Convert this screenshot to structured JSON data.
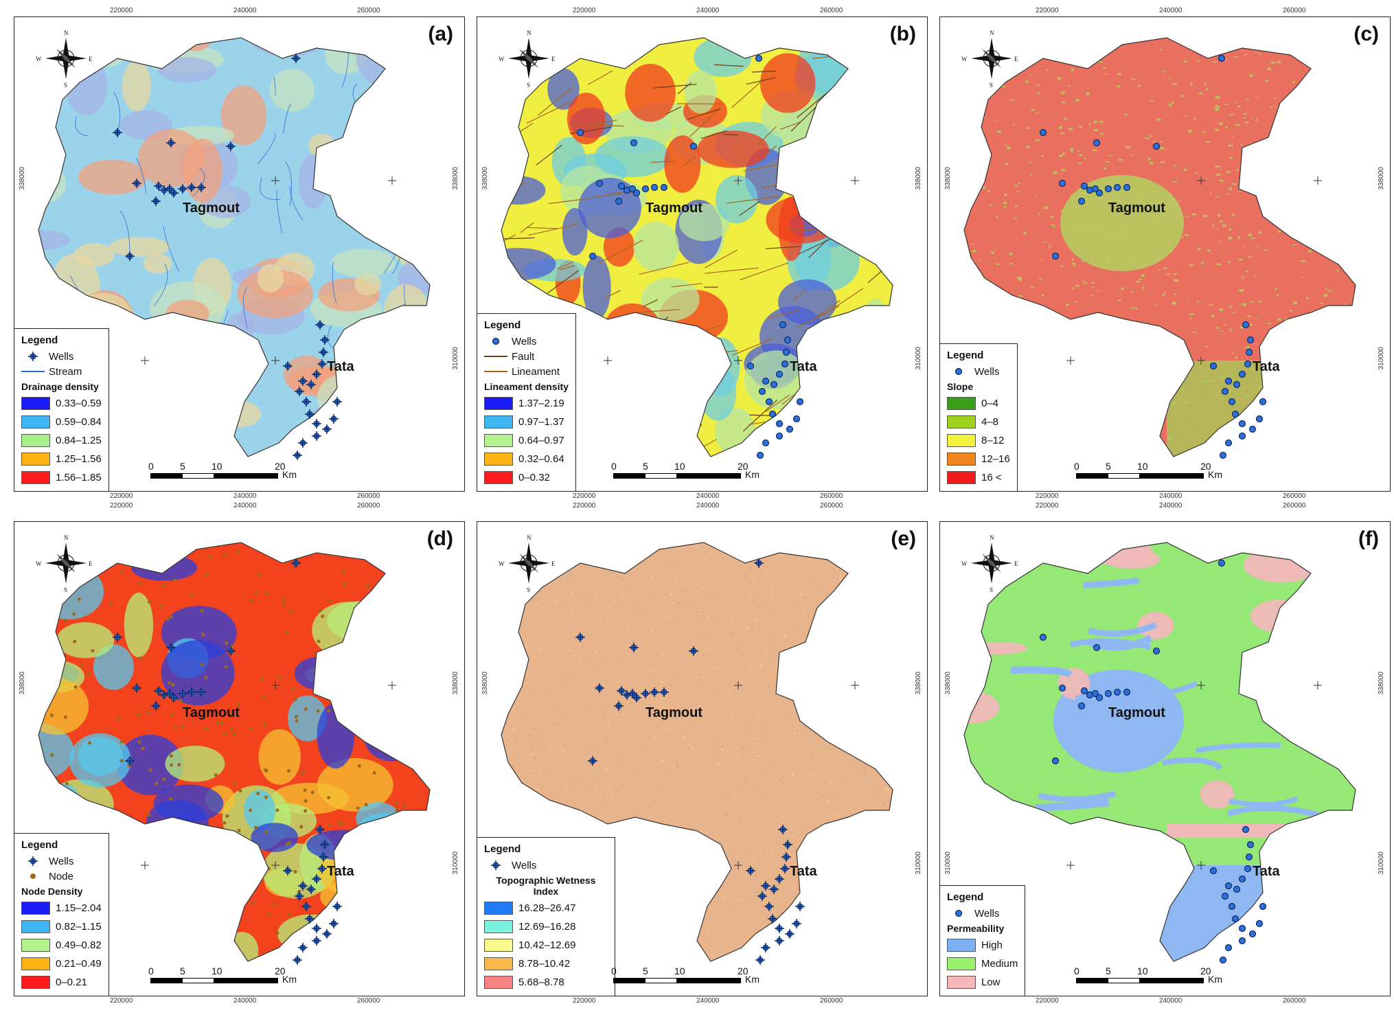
{
  "figure": {
    "top_ticks_row1": [
      "220000",
      "240000",
      "260000"
    ],
    "top_ticks_row2": [
      "220000",
      "240000",
      "260000"
    ],
    "bottom_ticks_row1": [
      "220000",
      "240000",
      "260000"
    ],
    "bottom_ticks_row2": [
      "220000",
      "240000",
      "260000"
    ],
    "y_ticks": [
      "338000",
      "310000"
    ],
    "place_names": {
      "north": "Tagmout",
      "south": "Tata"
    },
    "compass_letters": {
      "n": "N",
      "s": "S",
      "e": "E",
      "w": "W"
    },
    "scale": {
      "labels": [
        "0",
        "5",
        "10",
        "20"
      ],
      "unit": "Km"
    }
  },
  "panels": [
    {
      "id": "a",
      "label": "(a)",
      "base_colors": [
        "#9ad3ea",
        "#c5e3c0",
        "#e8d8a0",
        "#a6b4e6",
        "#f2a27e"
      ],
      "legend": {
        "title": "Legend",
        "symbols": [
          {
            "label": "Wells",
            "kind": "well-cross"
          },
          {
            "label": "Stream",
            "kind": "line",
            "color": "#2a6fd6"
          }
        ],
        "class_title": "Drainage density",
        "classes": [
          {
            "label": "0.33–0.59",
            "color": "#1b1bf5"
          },
          {
            "label": "0.59–0.84",
            "color": "#3fb6f2"
          },
          {
            "label": "0.84–1.25",
            "color": "#a8f08c"
          },
          {
            "label": "1.25–1.56",
            "color": "#fbb414"
          },
          {
            "label": "1.56–1.85",
            "color": "#fc1a1a"
          }
        ]
      }
    },
    {
      "id": "b",
      "label": "(b)",
      "base_colors": [
        "#f0ee40",
        "#b7e6a0",
        "#6fcde0",
        "#4c5fd8",
        "#f23b1e"
      ],
      "legend": {
        "title": "Legend",
        "symbols": [
          {
            "label": "Wells",
            "kind": "well-dot"
          },
          {
            "label": "Fault",
            "kind": "line",
            "color": "#6b3f1a"
          },
          {
            "label": "Lineament",
            "kind": "line",
            "color": "#a9651f"
          }
        ],
        "class_title": "Lineament density",
        "classes": [
          {
            "label": "1.37–2.19",
            "color": "#1b1bf5"
          },
          {
            "label": "0.97–1.37",
            "color": "#3fb6f2"
          },
          {
            "label": "0.64–0.97",
            "color": "#b3f28c"
          },
          {
            "label": "0.32–0.64",
            "color": "#fbb414"
          },
          {
            "label": "0–0.32",
            "color": "#fc1a1a"
          }
        ]
      }
    },
    {
      "id": "c",
      "label": "(c)",
      "base_colors": [
        "#e9705e",
        "#b8d060",
        "#e5805c"
      ],
      "legend": {
        "title": "Legend",
        "symbols": [
          {
            "label": "Wells",
            "kind": "well-dot"
          }
        ],
        "class_title": "Slope",
        "classes": [
          {
            "label": "0–4",
            "color": "#3a9e1a"
          },
          {
            "label": "4–8",
            "color": "#9ed21e"
          },
          {
            "label": "8–12",
            "color": "#f2f23a"
          },
          {
            "label": "12–16",
            "color": "#f2861e"
          },
          {
            "label": "16 <",
            "color": "#f21a1a"
          }
        ]
      }
    },
    {
      "id": "d",
      "label": "(d)",
      "base_colors": [
        "#f2431e",
        "#f6c232",
        "#b5ee7a",
        "#55c8ee",
        "#2b3fd8"
      ],
      "legend": {
        "title": "Legend",
        "symbols": [
          {
            "label": "Wells",
            "kind": "well-cross"
          },
          {
            "label": "Node",
            "kind": "node-dot"
          }
        ],
        "class_title": "Node Density",
        "classes": [
          {
            "label": "1.15–2.04",
            "color": "#1b1bf5"
          },
          {
            "label": "0.82–1.15",
            "color": "#3fb6f2"
          },
          {
            "label": "0.49–0.82",
            "color": "#b3f28c"
          },
          {
            "label": "0.21–0.49",
            "color": "#fbb414"
          },
          {
            "label": "0–0.21",
            "color": "#fc1a1a"
          }
        ]
      }
    },
    {
      "id": "e",
      "label": "(e)",
      "base_colors": [
        "#e8b48c",
        "#f0c98e",
        "#d9a58a"
      ],
      "legend": {
        "title": "Legend",
        "symbols": [
          {
            "label": "Wells",
            "kind": "well-cross"
          }
        ],
        "class_title": "Topographic Wetness Index",
        "classes": [
          {
            "label": "16.28–26.47",
            "color": "#1f7cf2"
          },
          {
            "label": "12.69–16.28",
            "color": "#7af2de"
          },
          {
            "label": "10.42–12.69",
            "color": "#f8f88c"
          },
          {
            "label": "8.78–10.42",
            "color": "#f8b84a"
          },
          {
            "label": "5.68–8.78",
            "color": "#f88484"
          }
        ]
      }
    },
    {
      "id": "f",
      "label": "(f)",
      "base_colors": [
        "#96e876",
        "#8fb8f2",
        "#f0b8b8"
      ],
      "legend": {
        "title": "Legend",
        "symbols": [
          {
            "label": "Wells",
            "kind": "well-dot"
          }
        ],
        "class_title": "Permeability",
        "classes": [
          {
            "label": "High",
            "color": "#7fb0f5"
          },
          {
            "label": "Medium",
            "color": "#9af26c"
          },
          {
            "label": "Low",
            "color": "#f5b8b8"
          }
        ]
      }
    }
  ]
}
